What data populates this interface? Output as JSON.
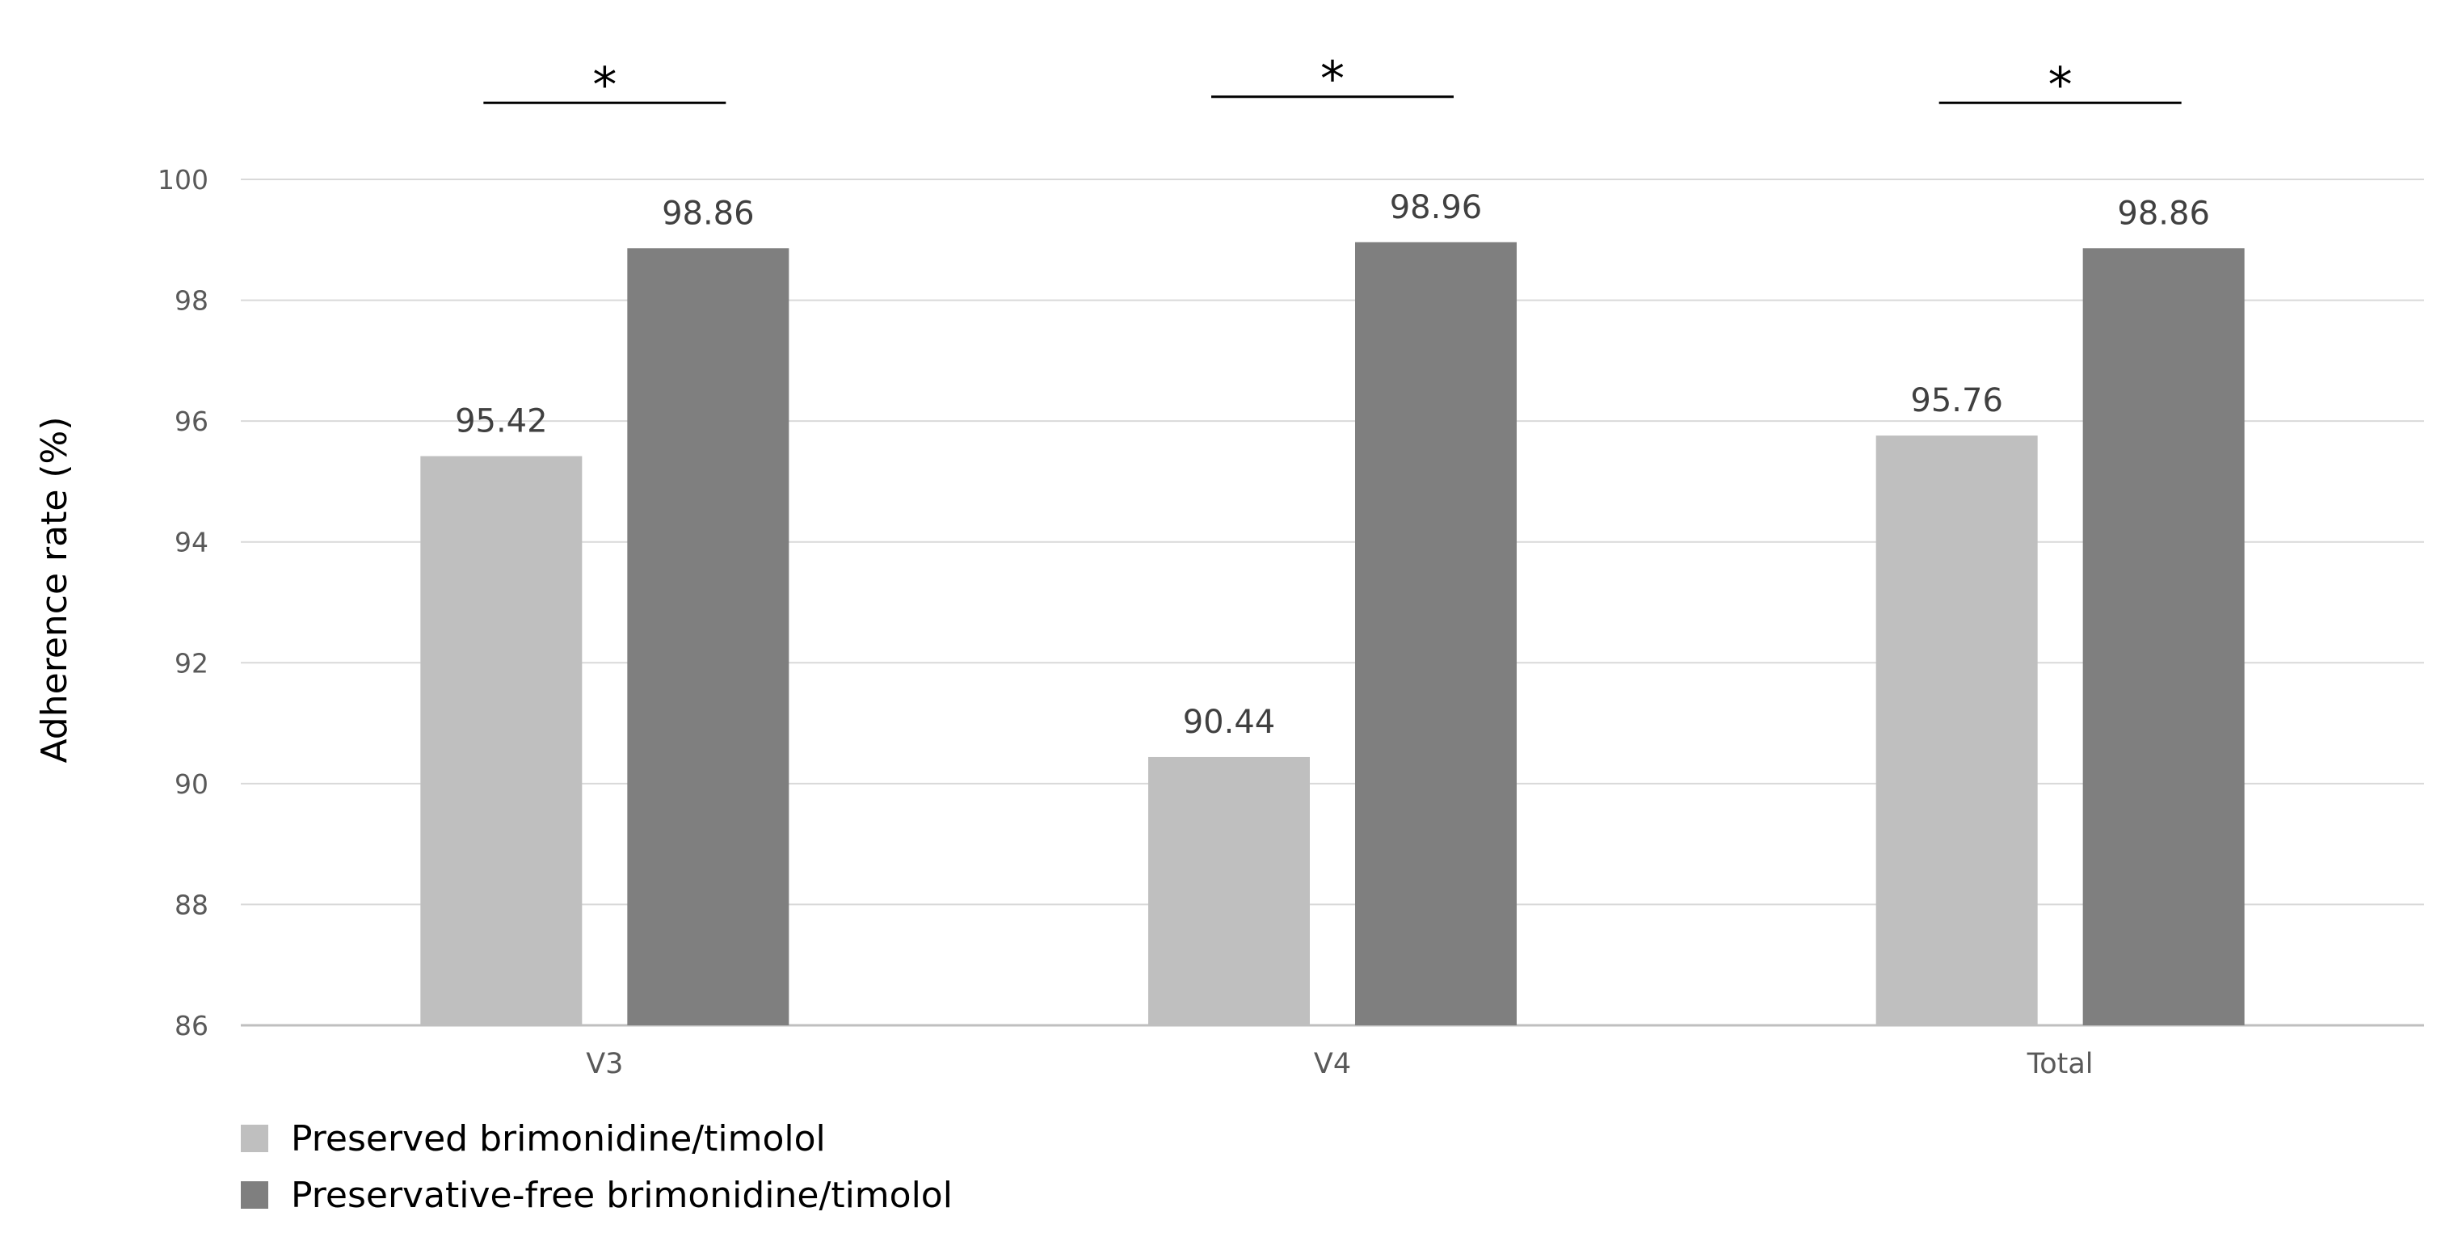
{
  "chart_data": {
    "type": "bar",
    "categories": [
      "V3",
      "V4",
      "Total"
    ],
    "series": [
      {
        "name": "Preserved brimonidine/timolol",
        "values": [
          95.42,
          90.44,
          95.76
        ],
        "labels": [
          "95.42",
          "90.44",
          "95.76"
        ],
        "color": "#bfbfbf"
      },
      {
        "name": "Preservative-free brimonidine/timolol",
        "values": [
          98.86,
          98.96,
          98.86
        ],
        "labels": [
          "98.86",
          "98.96",
          "98.86"
        ],
        "color": "#7f7f7f"
      }
    ],
    "ylabel": "Adherence rate (%)",
    "xlabel": "",
    "ylim": [
      86,
      100
    ],
    "yticks": [
      "86",
      "88",
      "90",
      "92",
      "94",
      "96",
      "98",
      "100"
    ],
    "significance": [
      "*",
      "*",
      "*"
    ],
    "grid": true,
    "legend_position": "bottom-left"
  }
}
